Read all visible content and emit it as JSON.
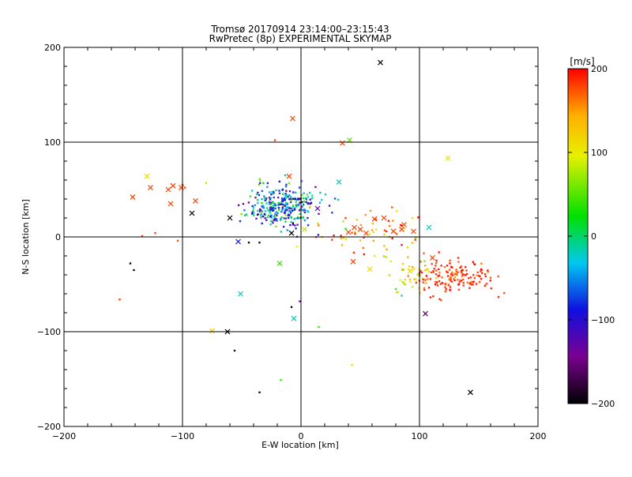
{
  "chart_data": {
    "type": "scatter",
    "title": "Tromsø 20170914 23:14:00–23:15:43",
    "subtitle": "RwPretec (8p) EXPERIMENTAL SKYMAP",
    "xlabel": "E-W location [km]",
    "ylabel": "N-S location [km]",
    "xlim": [
      -200,
      200
    ],
    "ylim": [
      -200,
      200
    ],
    "x_ticks": [
      -200,
      -100,
      0,
      100,
      200
    ],
    "y_ticks": [
      -200,
      -100,
      0,
      100,
      200
    ],
    "grid": true,
    "colorbar": {
      "label": "[m/s]",
      "range": [
        -200,
        200
      ],
      "ticks": [
        200,
        100,
        0,
        -100,
        -200
      ],
      "colormap": "rainbow (black-purple-blue-cyan-green-yellow-red)"
    },
    "cross_points": [
      {
        "x": 67,
        "y": 184,
        "v": -200
      },
      {
        "x": -7,
        "y": 125,
        "v": 180
      },
      {
        "x": 35,
        "y": 99,
        "v": 175
      },
      {
        "x": 41,
        "y": 102,
        "v": 50
      },
      {
        "x": 124,
        "y": 83,
        "v": 105
      },
      {
        "x": -130,
        "y": 64,
        "v": 110
      },
      {
        "x": -127,
        "y": 52,
        "v": 180
      },
      {
        "x": -112,
        "y": 50,
        "v": 180
      },
      {
        "x": -108,
        "y": 54,
        "v": 180
      },
      {
        "x": -101,
        "y": 52,
        "v": 180
      },
      {
        "x": -142,
        "y": 42,
        "v": 180
      },
      {
        "x": -110,
        "y": 35,
        "v": 180
      },
      {
        "x": -89,
        "y": 38,
        "v": 180
      },
      {
        "x": -92,
        "y": 25,
        "v": -200
      },
      {
        "x": -60,
        "y": 20,
        "v": -200
      },
      {
        "x": -10,
        "y": 64,
        "v": 180
      },
      {
        "x": 32,
        "y": 58,
        "v": -20
      },
      {
        "x": 14,
        "y": 30,
        "v": -130
      },
      {
        "x": -8,
        "y": 4,
        "v": -200
      },
      {
        "x": 3,
        "y": 8,
        "v": 80
      },
      {
        "x": 40,
        "y": 5,
        "v": 180
      },
      {
        "x": 45,
        "y": 10,
        "v": 180
      },
      {
        "x": 50,
        "y": 8,
        "v": 180
      },
      {
        "x": 55,
        "y": 4,
        "v": 175
      },
      {
        "x": 62,
        "y": 19,
        "v": 180
      },
      {
        "x": 70,
        "y": 20,
        "v": 180
      },
      {
        "x": 78,
        "y": 6,
        "v": 180
      },
      {
        "x": 85,
        "y": 8,
        "v": 180
      },
      {
        "x": 87,
        "y": 13,
        "v": 175
      },
      {
        "x": 95,
        "y": 6,
        "v": 175
      },
      {
        "x": 108,
        "y": 10,
        "v": -20
      },
      {
        "x": -53,
        "y": -5,
        "v": -90
      },
      {
        "x": -18,
        "y": -28,
        "v": 40
      },
      {
        "x": 44,
        "y": -26,
        "v": 180
      },
      {
        "x": 58,
        "y": -34,
        "v": 110
      },
      {
        "x": 111,
        "y": -22,
        "v": 180
      },
      {
        "x": 92,
        "y": -36,
        "v": 110
      },
      {
        "x": -51,
        "y": -60,
        "v": -20
      },
      {
        "x": -6,
        "y": -86,
        "v": -20
      },
      {
        "x": 105,
        "y": -81,
        "v": -160
      },
      {
        "x": -75,
        "y": -99,
        "v": 120
      },
      {
        "x": -62,
        "y": -100,
        "v": -200
      },
      {
        "x": 143,
        "y": -164,
        "v": -200
      }
    ],
    "dot_clusters": [
      {
        "name": "north cluster",
        "cx": -15,
        "cy": 32,
        "sx": 16,
        "sy": 11,
        "n": 320,
        "vmean": -50,
        "vspread": 100
      },
      {
        "name": "middle band",
        "cx": 55,
        "cy": 5,
        "sx": 28,
        "sy": 12,
        "n": 60,
        "vmean": 155,
        "vspread": 70
      },
      {
        "name": "south-east cluster",
        "cx": 128,
        "cy": -42,
        "sx": 17,
        "sy": 9,
        "n": 150,
        "vmean": 185,
        "vspread": 25
      },
      {
        "name": "south-east yellow tail",
        "cx": 93,
        "cy": -42,
        "sx": 10,
        "sy": 10,
        "n": 40,
        "vmean": 115,
        "vspread": 50
      }
    ],
    "dot_points": [
      {
        "x": -144,
        "y": -28,
        "v": -200
      },
      {
        "x": -141,
        "y": -35,
        "v": -200
      },
      {
        "x": -153,
        "y": -66,
        "v": 180
      },
      {
        "x": -134,
        "y": 1,
        "v": 180
      },
      {
        "x": -123,
        "y": 4,
        "v": 180
      },
      {
        "x": -104,
        "y": -4,
        "v": 175
      },
      {
        "x": -98,
        "y": 52,
        "v": 180
      },
      {
        "x": -100,
        "y": 55,
        "v": 180
      },
      {
        "x": -80,
        "y": 57,
        "v": 80
      },
      {
        "x": -8,
        "y": -74,
        "v": -200
      },
      {
        "x": -1,
        "y": -68,
        "v": -130
      },
      {
        "x": -56,
        "y": -120,
        "v": -200
      },
      {
        "x": -35,
        "y": -164,
        "v": -200
      },
      {
        "x": -17,
        "y": -151,
        "v": 40
      },
      {
        "x": 15,
        "y": -95,
        "v": 40
      },
      {
        "x": 43,
        "y": -135,
        "v": 110
      },
      {
        "x": -22,
        "y": 102,
        "v": 180
      },
      {
        "x": -44,
        "y": -6,
        "v": -200
      },
      {
        "x": -35,
        "y": -6,
        "v": -200
      },
      {
        "x": 62,
        "y": -20,
        "v": 100
      },
      {
        "x": 85,
        "y": -62,
        "v": -10
      },
      {
        "x": 80,
        "y": -55,
        "v": 40
      }
    ]
  }
}
